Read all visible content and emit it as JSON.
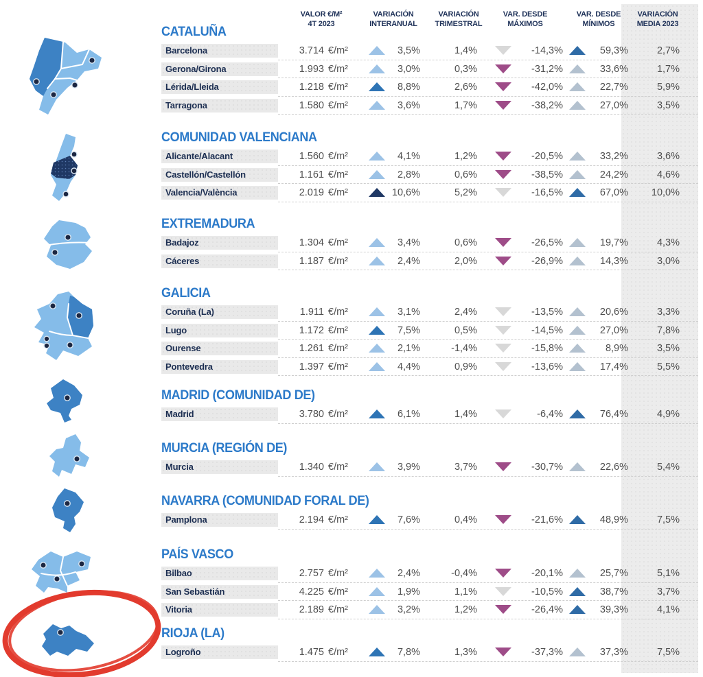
{
  "header": {
    "columns": [
      {
        "line1": "VALOR €/M²",
        "line2": "4T 2023"
      },
      {
        "line1": "VARIACIÓN",
        "line2": "INTERANUAL"
      },
      {
        "line1": "VARIACIÓN",
        "line2": "TRIMESTRAL"
      },
      {
        "line1": "VAR. DESDE",
        "line2": "MÁXIMOS"
      },
      {
        "line1": "VAR. DESDE",
        "line2": "MÍNIMOS"
      },
      {
        "line1": "VARIACIÓN",
        "line2": "MEDIA 2023"
      }
    ]
  },
  "unit_label": "€/m²",
  "colors": {
    "region_title": "#2c7ac9",
    "label_text": "#1d2f52",
    "value_text": "#4f4f4f",
    "header_text": "#20335a",
    "media_band_bg": "#ececec",
    "label_bar_bg": "#e9e9e9",
    "map_light_blue": "#85bce9",
    "map_medium_blue": "#3d82c4",
    "map_dark_navy": "#1f3864",
    "tri_up_light": "#9cc2e6",
    "tri_up_medium": "#2e74b5",
    "tri_up_navy": "#1f3864",
    "tri_down_gray": "#d8d8d8",
    "tri_down_magenta": "#9e4c88",
    "tri_min_grayblue": "#b3c1cf",
    "tri_min_darkblue": "#2f6ba6",
    "annotation_red": "#e23b2e"
  },
  "annotation": {
    "shape": "hand-drawn red ellipse",
    "around": "RIOJA (LA) map",
    "color": "#e23b2e"
  },
  "regions": [
    {
      "name": "CATALUÑA",
      "rows": [
        {
          "city": "Barcelona",
          "value": "3.714",
          "interanual": "3,5%",
          "interanual_icon": "up-1",
          "trimestral": "1,4%",
          "maximos": "-14,3%",
          "maximos_icon": "down-1",
          "minimos": "59,3%",
          "minimos_icon": "upmin-2",
          "media": "2,7%"
        },
        {
          "city": "Gerona/Girona",
          "value": "1.993",
          "interanual": "3,0%",
          "interanual_icon": "up-1",
          "trimestral": "0,3%",
          "maximos": "-31,2%",
          "maximos_icon": "down-2",
          "minimos": "33,6%",
          "minimos_icon": "upmin-1",
          "media": "1,7%"
        },
        {
          "city": "Lérida/Lleida",
          "value": "1.218",
          "interanual": "8,8%",
          "interanual_icon": "up-2",
          "trimestral": "2,6%",
          "maximos": "-42,0%",
          "maximos_icon": "down-2",
          "minimos": "22,7%",
          "minimos_icon": "upmin-1",
          "media": "5,9%"
        },
        {
          "city": "Tarragona",
          "value": "1.580",
          "interanual": "3,6%",
          "interanual_icon": "up-1",
          "trimestral": "1,7%",
          "maximos": "-38,2%",
          "maximos_icon": "down-2",
          "minimos": "27,0%",
          "minimos_icon": "upmin-1",
          "media": "3,5%"
        }
      ]
    },
    {
      "name": "COMUNIDAD VALENCIANA",
      "rows": [
        {
          "city": "Alicante/Alacant",
          "value": "1.560",
          "interanual": "4,1%",
          "interanual_icon": "up-1",
          "trimestral": "1,2%",
          "maximos": "-20,5%",
          "maximos_icon": "down-2",
          "minimos": "33,2%",
          "minimos_icon": "upmin-1",
          "media": "3,6%"
        },
        {
          "city": "Castellón/Castellón",
          "value": "1.161",
          "interanual": "2,8%",
          "interanual_icon": "up-1",
          "trimestral": "0,6%",
          "maximos": "-38,5%",
          "maximos_icon": "down-2",
          "minimos": "24,2%",
          "minimos_icon": "upmin-1",
          "media": "4,6%"
        },
        {
          "city": "Valencia/València",
          "value": "2.019",
          "interanual": "10,6%",
          "interanual_icon": "up-3",
          "trimestral": "5,2%",
          "maximos": "-16,5%",
          "maximos_icon": "down-1",
          "minimos": "67,0%",
          "minimos_icon": "upmin-2",
          "media": "10,0%"
        }
      ]
    },
    {
      "name": "EXTREMADURA",
      "rows": [
        {
          "city": "Badajoz",
          "value": "1.304",
          "interanual": "3,4%",
          "interanual_icon": "up-1",
          "trimestral": "0,6%",
          "maximos": "-26,5%",
          "maximos_icon": "down-2",
          "minimos": "19,7%",
          "minimos_icon": "upmin-1",
          "media": "4,3%"
        },
        {
          "city": "Cáceres",
          "value": "1.187",
          "interanual": "2,4%",
          "interanual_icon": "up-1",
          "trimestral": "2,0%",
          "maximos": "-26,9%",
          "maximos_icon": "down-2",
          "minimos": "14,3%",
          "minimos_icon": "upmin-1",
          "media": "3,0%"
        }
      ]
    },
    {
      "name": "GALICIA",
      "rows": [
        {
          "city": "Coruña (La)",
          "value": "1.911",
          "interanual": "3,1%",
          "interanual_icon": "up-1",
          "trimestral": "2,4%",
          "maximos": "-13,5%",
          "maximos_icon": "down-1",
          "minimos": "20,6%",
          "minimos_icon": "upmin-1",
          "media": "3,3%"
        },
        {
          "city": "Lugo",
          "value": "1.172",
          "interanual": "7,5%",
          "interanual_icon": "up-2",
          "trimestral": "0,5%",
          "maximos": "-14,5%",
          "maximos_icon": "down-1",
          "minimos": "27,0%",
          "minimos_icon": "upmin-1",
          "media": "7,8%"
        },
        {
          "city": "Ourense",
          "value": "1.261",
          "interanual": "2,1%",
          "interanual_icon": "up-1",
          "trimestral": "-1,4%",
          "maximos": "-15,8%",
          "maximos_icon": "down-1",
          "minimos": "8,9%",
          "minimos_icon": "upmin-1",
          "media": "3,5%"
        },
        {
          "city": "Pontevedra",
          "value": "1.397",
          "interanual": "4,4%",
          "interanual_icon": "up-1",
          "trimestral": "0,9%",
          "maximos": "-13,6%",
          "maximos_icon": "down-1",
          "minimos": "17,4%",
          "minimos_icon": "upmin-1",
          "media": "5,5%"
        }
      ]
    },
    {
      "name": "MADRID (COMUNIDAD DE)",
      "rows": [
        {
          "city": "Madrid",
          "value": "3.780",
          "interanual": "6,1%",
          "interanual_icon": "up-2",
          "trimestral": "1,4%",
          "maximos": "-6,4%",
          "maximos_icon": "down-1",
          "minimos": "76,4%",
          "minimos_icon": "upmin-2",
          "media": "4,9%"
        }
      ]
    },
    {
      "name": "MURCIA (REGIÓN DE)",
      "rows": [
        {
          "city": "Murcia",
          "value": "1.340",
          "interanual": "3,9%",
          "interanual_icon": "up-1",
          "trimestral": "3,7%",
          "maximos": "-30,7%",
          "maximos_icon": "down-2",
          "minimos": "22,6%",
          "minimos_icon": "upmin-1",
          "media": "5,4%"
        }
      ]
    },
    {
      "name": "NAVARRA (COMUNIDAD FORAL DE)",
      "rows": [
        {
          "city": "Pamplona",
          "value": "2.194",
          "interanual": "7,6%",
          "interanual_icon": "up-2",
          "trimestral": "0,4%",
          "maximos": "-21,6%",
          "maximos_icon": "down-2",
          "minimos": "48,9%",
          "minimos_icon": "upmin-2",
          "media": "7,5%"
        }
      ]
    },
    {
      "name": "PAÍS VASCO",
      "rows": [
        {
          "city": "Bilbao",
          "value": "2.757",
          "interanual": "2,4%",
          "interanual_icon": "up-1",
          "trimestral": "-0,4%",
          "maximos": "-20,1%",
          "maximos_icon": "down-2",
          "minimos": "25,7%",
          "minimos_icon": "upmin-1",
          "media": "5,1%"
        },
        {
          "city": "San Sebastián",
          "value": "4.225",
          "interanual": "1,9%",
          "interanual_icon": "up-1",
          "trimestral": "1,1%",
          "maximos": "-10,5%",
          "maximos_icon": "down-1",
          "minimos": "38,7%",
          "minimos_icon": "upmin-2",
          "media": "3,7%"
        },
        {
          "city": "Vitoria",
          "value": "2.189",
          "interanual": "3,2%",
          "interanual_icon": "up-1",
          "trimestral": "1,2%",
          "maximos": "-26,4%",
          "maximos_icon": "down-2",
          "minimos": "39,3%",
          "minimos_icon": "upmin-2",
          "media": "4,1%"
        }
      ]
    },
    {
      "name": "RIOJA (LA)",
      "rows": [
        {
          "city": "Logroño",
          "value": "1.475",
          "interanual": "7,8%",
          "interanual_icon": "up-2",
          "trimestral": "1,3%",
          "maximos": "-37,3%",
          "maximos_icon": "down-2",
          "minimos": "37,3%",
          "minimos_icon": "upmin-1",
          "media": "7,5%"
        }
      ]
    }
  ]
}
